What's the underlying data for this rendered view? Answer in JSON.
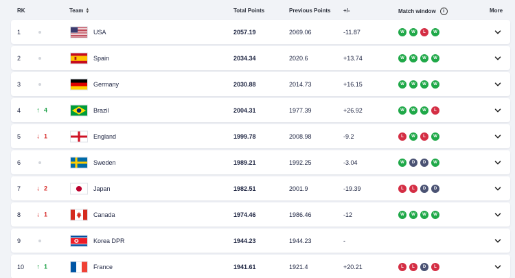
{
  "header": {
    "rank": "RK",
    "team": "Team",
    "total_points": "Total Points",
    "previous_points": "Previous Points",
    "diff": "+/-",
    "match_window": "Match window",
    "more": "More"
  },
  "result_colors": {
    "W": "#1fa848",
    "L": "#d42e44",
    "D": "#4a5273"
  },
  "rows": [
    {
      "rank": "1",
      "move_dir": "none",
      "move": "",
      "flag": "usa-flag",
      "team": "USA",
      "total": "2057.19",
      "prev": "2069.06",
      "diff": "-11.87",
      "matches": [
        "W",
        "W",
        "L",
        "W"
      ]
    },
    {
      "rank": "2",
      "move_dir": "none",
      "move": "",
      "flag": "spain-flag",
      "team": "Spain",
      "total": "2034.34",
      "prev": "2020.6",
      "diff": "+13.74",
      "matches": [
        "W",
        "W",
        "W",
        "W"
      ]
    },
    {
      "rank": "3",
      "move_dir": "none",
      "move": "",
      "flag": "germany-flag",
      "team": "Germany",
      "total": "2030.88",
      "prev": "2014.73",
      "diff": "+16.15",
      "matches": [
        "W",
        "W",
        "W",
        "W"
      ]
    },
    {
      "rank": "4",
      "move_dir": "up",
      "move": "4",
      "flag": "brazil-flag",
      "team": "Brazil",
      "total": "2004.31",
      "prev": "1977.39",
      "diff": "+26.92",
      "matches": [
        "W",
        "W",
        "W",
        "L"
      ]
    },
    {
      "rank": "5",
      "move_dir": "down",
      "move": "1",
      "flag": "england-flag",
      "team": "England",
      "total": "1999.78",
      "prev": "2008.98",
      "diff": "-9.2",
      "matches": [
        "L",
        "W",
        "L",
        "W"
      ]
    },
    {
      "rank": "6",
      "move_dir": "none",
      "move": "",
      "flag": "sweden-flag",
      "team": "Sweden",
      "total": "1989.21",
      "prev": "1992.25",
      "diff": "-3.04",
      "matches": [
        "W",
        "D",
        "D",
        "W"
      ]
    },
    {
      "rank": "7",
      "move_dir": "down",
      "move": "2",
      "flag": "japan-flag",
      "team": "Japan",
      "total": "1982.51",
      "prev": "2001.9",
      "diff": "-19.39",
      "matches": [
        "L",
        "L",
        "D",
        "D"
      ]
    },
    {
      "rank": "8",
      "move_dir": "down",
      "move": "1",
      "flag": "canada-flag",
      "team": "Canada",
      "total": "1974.46",
      "prev": "1986.46",
      "diff": "-12",
      "matches": [
        "W",
        "W",
        "W",
        "W"
      ]
    },
    {
      "rank": "9",
      "move_dir": "none",
      "move": "",
      "flag": "korea-dpr-flag",
      "team": "Korea DPR",
      "total": "1944.23",
      "prev": "1944.23",
      "diff": "-",
      "matches": []
    },
    {
      "rank": "10",
      "move_dir": "up",
      "move": "1",
      "flag": "france-flag",
      "team": "France",
      "total": "1941.61",
      "prev": "1921.4",
      "diff": "+20.21",
      "matches": [
        "L",
        "L",
        "D",
        "L"
      ]
    }
  ]
}
